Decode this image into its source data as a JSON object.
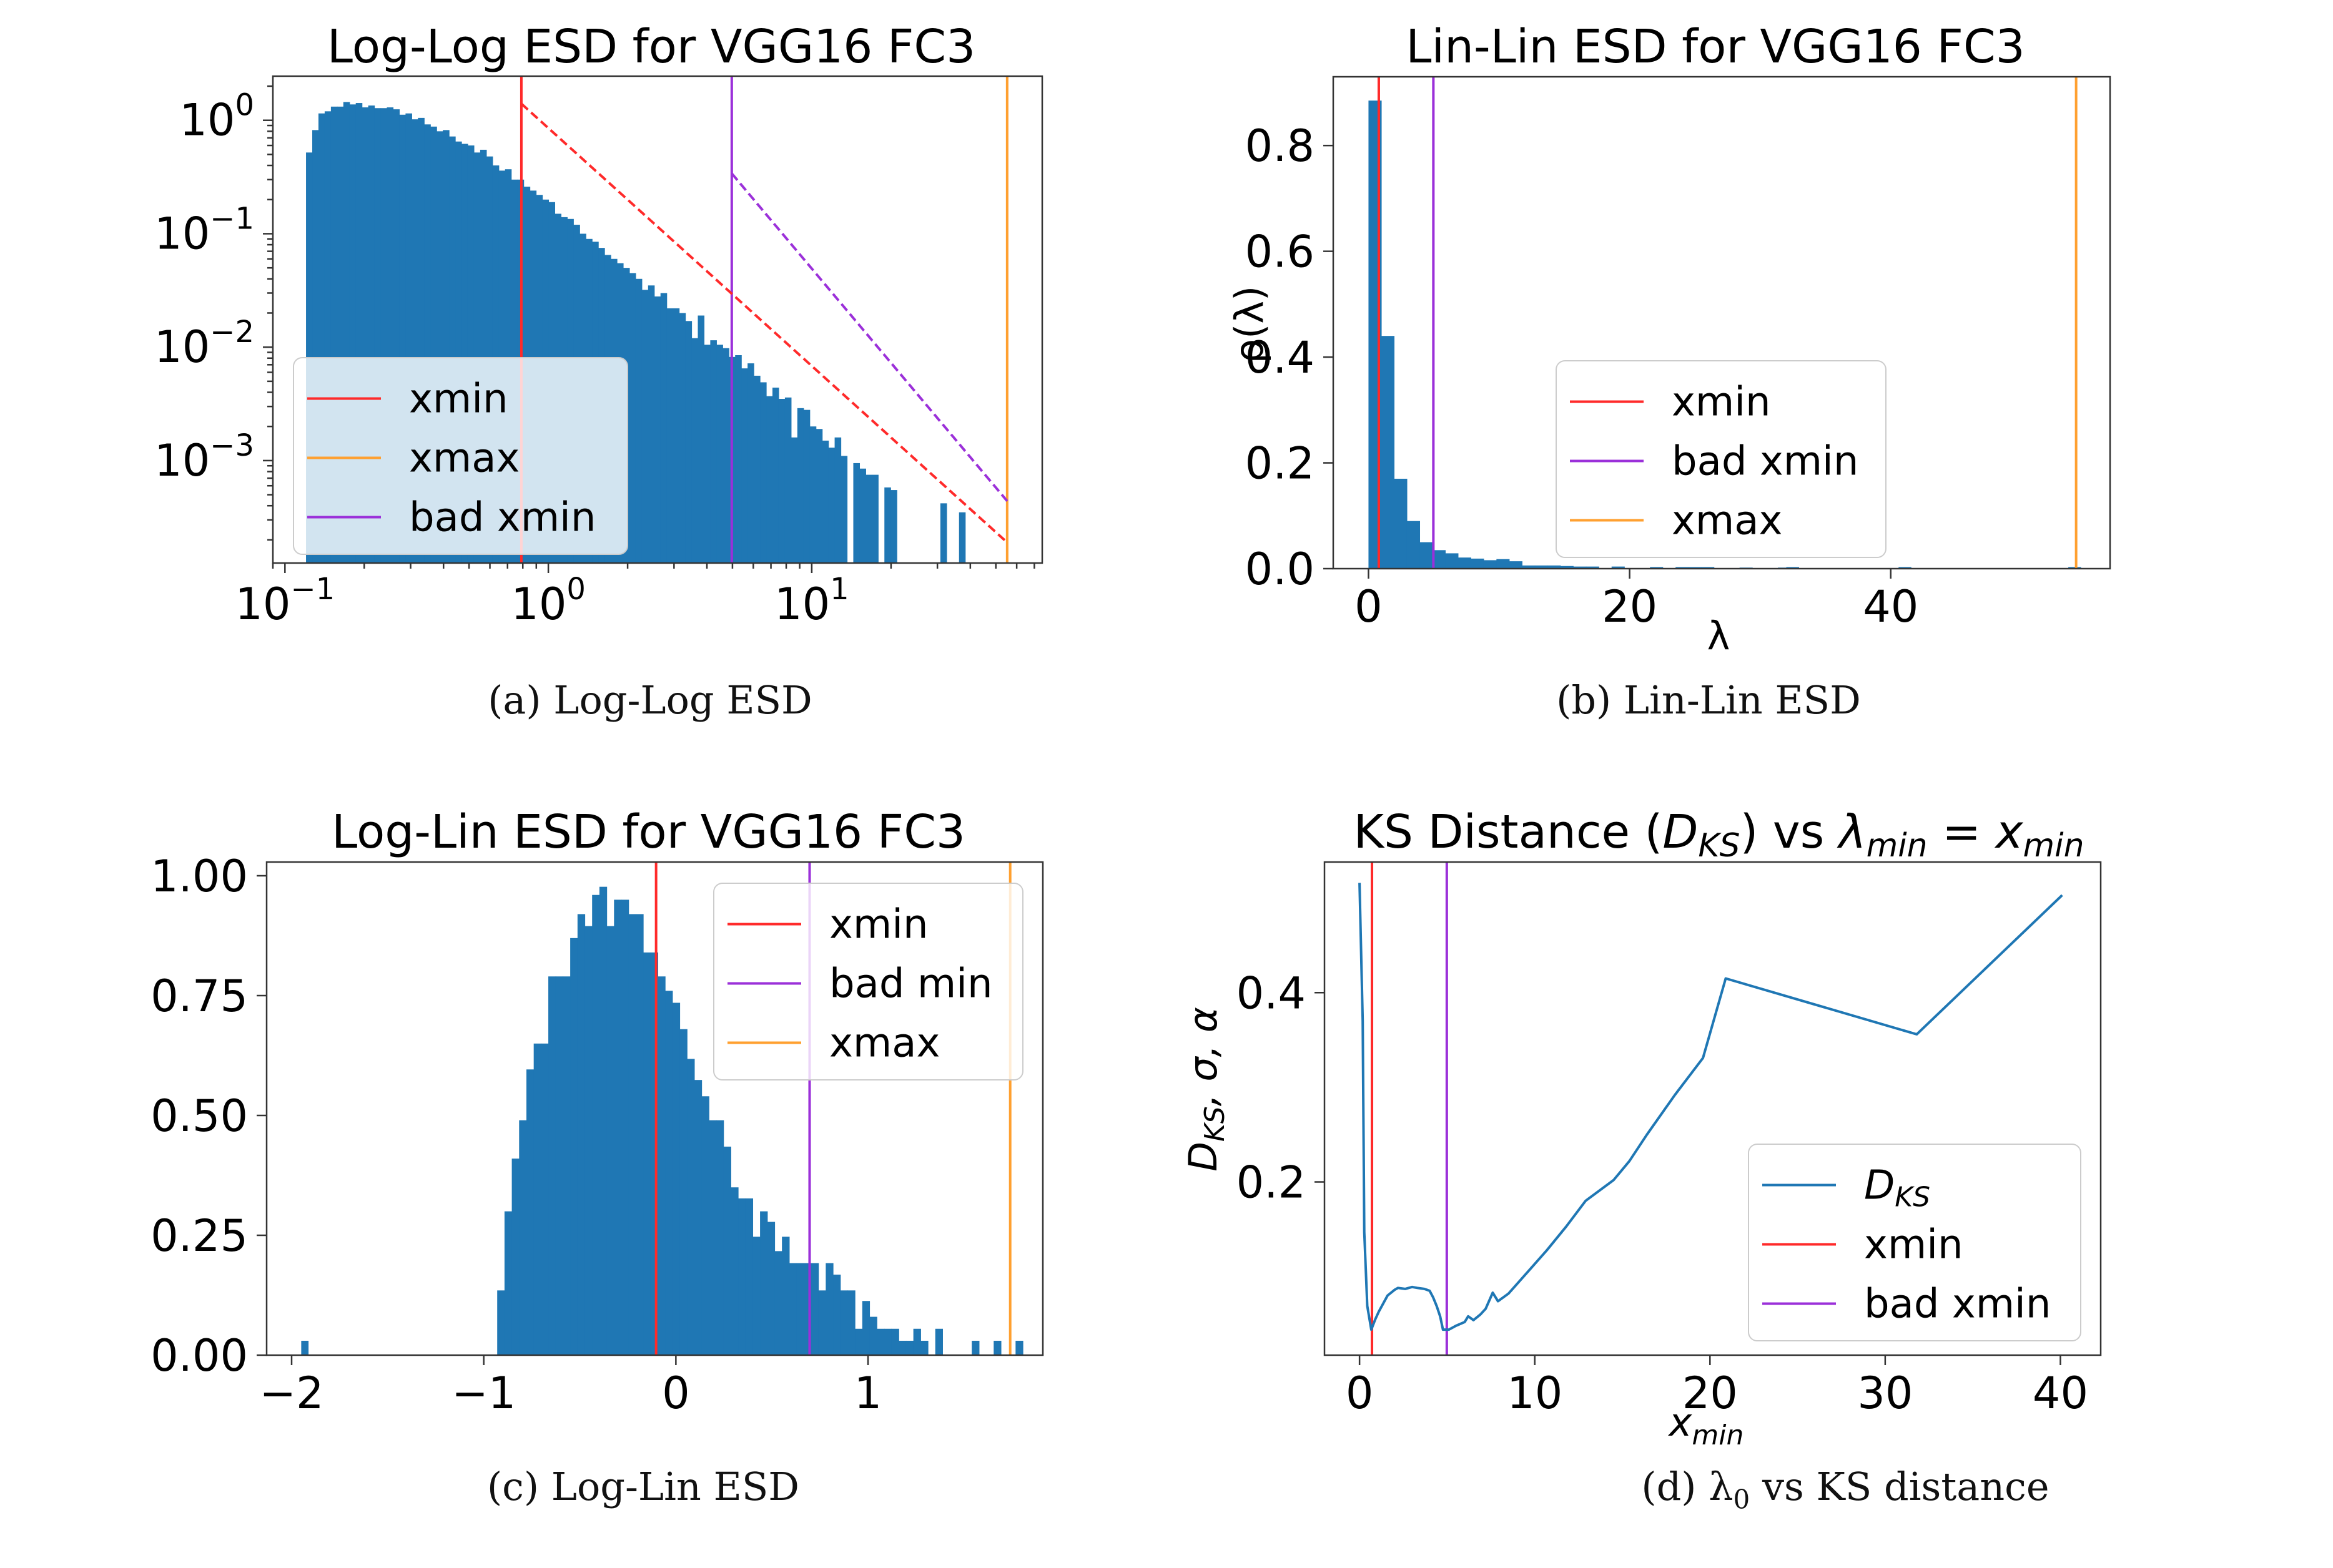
{
  "colors": {
    "bar": "#1f77b4",
    "xmin": "#ff2a2a",
    "bad_xmin": "#9b30d9",
    "xmax": "#ffa030",
    "line": "#1f77b4"
  },
  "captions": {
    "a": "(a) Log-Log ESD",
    "b": "(b) Lin-Lin ESD",
    "c": "(c) Log-Lin ESD",
    "d_prefix": "(d) λ",
    "d_sub": "0",
    "d_suffix": " vs KS distance"
  },
  "chart_data": [
    {
      "id": "a",
      "type": "bar",
      "title": "Log-Log ESD for VGG16 FC3",
      "xscale": "log",
      "yscale": "log",
      "xlim": [
        0.09,
        75
      ],
      "ylim": [
        0.000125,
        2.45
      ],
      "xticks": [
        {
          "value": 0.1,
          "base": "10",
          "exp": "−1"
        },
        {
          "value": 1,
          "base": "10",
          "exp": "0"
        },
        {
          "value": 10,
          "base": "10",
          "exp": "1"
        }
      ],
      "yticks": [
        {
          "value": 1,
          "base": "10",
          "exp": "0"
        },
        {
          "value": 0.1,
          "base": "10",
          "exp": "−1"
        },
        {
          "value": 0.01,
          "base": "10",
          "exp": "−2"
        },
        {
          "value": 0.001,
          "base": "10",
          "exp": "−3"
        }
      ],
      "bin_edges_log10": [
        -0.92,
        1.63
      ],
      "values": [
        0.52,
        0.82,
        1.15,
        1.2,
        1.32,
        1.32,
        1.45,
        1.38,
        1.42,
        1.3,
        1.35,
        1.28,
        1.28,
        1.3,
        1.25,
        1.12,
        1.15,
        1.02,
        1.05,
        0.92,
        0.88,
        0.8,
        0.82,
        0.72,
        0.65,
        0.62,
        0.6,
        0.52,
        0.55,
        0.48,
        0.4,
        0.36,
        0.37,
        0.3,
        0.3,
        0.26,
        0.24,
        0.22,
        0.2,
        0.19,
        0.15,
        0.14,
        0.135,
        0.12,
        0.1,
        0.09,
        0.085,
        0.075,
        0.065,
        0.06,
        0.055,
        0.05,
        0.045,
        0.04,
        0.032,
        0.035,
        0.028,
        0.03,
        0.022,
        0.022,
        0.02,
        0.017,
        0.012,
        0.019,
        0.0105,
        0.0115,
        0.0105,
        0.0098,
        0.0082,
        0.0085,
        0.0065,
        0.0072,
        0.0056,
        0.0049,
        0.0037,
        0.0044,
        0.0035,
        0.0036,
        0.0016,
        0.0029,
        0.0028,
        0.002,
        0.0019,
        0.0015,
        0.0013,
        0.0016,
        0.0011,
        0,
        0.00095,
        0.00085,
        0.00075,
        0.00075,
        0,
        0.00058,
        0.00055,
        0,
        0,
        0,
        0,
        0,
        0,
        0,
        0.00042,
        0,
        0,
        0.00035,
        0,
        0
      ],
      "vlines": [
        {
          "name": "xmin",
          "x": 0.79,
          "color_key": "xmin"
        },
        {
          "name": "bad xmin",
          "x": 4.97,
          "color_key": "bad_xmin"
        },
        {
          "name": "xmax",
          "x": 55.2,
          "color_key": "xmax"
        }
      ],
      "fit_lines": [
        {
          "name": "xmin fit",
          "x0": 0.79,
          "y0": 1.4,
          "x1": 55.2,
          "y1": 0.00019,
          "color_key": "xmin"
        },
        {
          "name": "bad xmin fit",
          "x0": 4.97,
          "y0": 0.34,
          "x1": 55.2,
          "y1": 0.00044,
          "color_key": "bad_xmin"
        }
      ],
      "legend": {
        "position": "lower-left",
        "framealpha": 0.8,
        "entries": [
          {
            "label": "xmin",
            "color_key": "xmin"
          },
          {
            "label": "xmax",
            "color_key": "xmax"
          },
          {
            "label": "bad xmin",
            "color_key": "bad_xmin"
          }
        ]
      }
    },
    {
      "id": "b",
      "type": "bar",
      "title": "Lin-Lin ESD for VGG16 FC3",
      "xlabel": "λ",
      "ylabel": "ρ(λ)",
      "xlim": [
        -2.7,
        56.8
      ],
      "ylim": [
        0,
        0.93
      ],
      "xticks": [
        0,
        20,
        40
      ],
      "yticks": [
        0.0,
        0.2,
        0.4,
        0.6,
        0.8
      ],
      "ytick_labels": [
        "0.0",
        "0.2",
        "0.4",
        "0.6",
        "0.8"
      ],
      "bin_start": 0.0,
      "bin_width": 0.98,
      "values": [
        0.885,
        0.44,
        0.17,
        0.09,
        0.05,
        0.035,
        0.029,
        0.021,
        0.019,
        0.016,
        0.018,
        0.014,
        0.006,
        0.006,
        0.006,
        0.005,
        0.004,
        0.004,
        0.0,
        0.004,
        0.0,
        0.0,
        0.003,
        0.0,
        0.003,
        0.003,
        0.003,
        0.0,
        0.0,
        0.002,
        0.0,
        0.0,
        0.002,
        0.0,
        0.0,
        0.0,
        0.0,
        0.0,
        0.0,
        0.0,
        0.0,
        0.0,
        0.0,
        0.0,
        0.0,
        0.0,
        0.0,
        0.0,
        0.0,
        0.0,
        0.0,
        0.0,
        0.0,
        0.0,
        0.0,
        0.0
      ],
      "extra_bars": [
        {
          "x": 32.0,
          "value": 0.003
        },
        {
          "x": 40.6,
          "value": 0.003
        },
        {
          "x": 53.6,
          "value": 0.003
        }
      ],
      "vlines": [
        {
          "name": "xmin",
          "x": 0.79,
          "color_key": "xmin"
        },
        {
          "name": "bad xmin",
          "x": 4.97,
          "color_key": "bad_xmin"
        },
        {
          "name": "xmax",
          "x": 54.2,
          "color_key": "xmax"
        }
      ],
      "legend": {
        "position": "center",
        "entries": [
          {
            "label": "xmin",
            "color_key": "xmin"
          },
          {
            "label": "bad xmin",
            "color_key": "bad_xmin"
          },
          {
            "label": "xmax",
            "color_key": "xmax"
          }
        ]
      }
    },
    {
      "id": "c",
      "type": "bar",
      "title": "Log-Lin ESD for VGG16 FC3",
      "xlim": [
        -2.13,
        1.91
      ],
      "ylim": [
        0,
        1.0
      ],
      "xticks": [
        -2,
        -1,
        0,
        1
      ],
      "xtick_labels": [
        "−2",
        "−1",
        "0",
        "1"
      ],
      "yticks": [
        0,
        0.25,
        0.5,
        0.75,
        1.0
      ],
      "ytick_labels": [
        "0.00",
        "0.25",
        "0.50",
        "0.75",
        "1.00"
      ],
      "bin_start": -0.93,
      "bin_width": 0.038,
      "values": [
        0.135,
        0.3,
        0.41,
        0.49,
        0.596,
        0.65,
        0.65,
        0.79,
        0.79,
        0.79,
        0.87,
        0.92,
        0.895,
        0.96,
        0.977,
        0.895,
        0.95,
        0.95,
        0.92,
        0.92,
        0.84,
        0.84,
        0.79,
        0.76,
        0.735,
        0.68,
        0.618,
        0.574,
        0.54,
        0.49,
        0.49,
        0.435,
        0.35,
        0.327,
        0.327,
        0.247,
        0.3,
        0.278,
        0.217,
        0.247,
        0.192,
        0.192,
        0.192,
        0.192,
        0.135,
        0.192,
        0.168,
        0.135,
        0.135,
        0.055,
        0.113,
        0.08,
        0.055,
        0.055,
        0.055,
        0.03,
        0.03,
        0.055,
        0.03,
        0.0,
        0.055,
        0.0,
        0.0,
        0.0,
        0.0,
        0.03,
        0.0,
        0.0,
        0.03,
        0.0,
        0.0,
        0.03
      ],
      "extra_bars": [
        {
          "x": -1.95,
          "value": 0.03
        }
      ],
      "vlines": [
        {
          "name": "xmin",
          "x": -0.103,
          "color_key": "xmin"
        },
        {
          "name": "bad min",
          "x": 0.696,
          "color_key": "bad_xmin"
        },
        {
          "name": "xmax",
          "x": 1.74,
          "color_key": "xmax"
        }
      ],
      "legend": {
        "position": "upper-right",
        "entries": [
          {
            "label": "xmin",
            "color_key": "xmin"
          },
          {
            "label": "bad min",
            "color_key": "bad_xmin"
          },
          {
            "label": "xmax",
            "color_key": "xmax"
          }
        ]
      }
    },
    {
      "id": "d",
      "type": "line",
      "title_parts": {
        "pre": "KS Distance (",
        "D": "D",
        "KS": "KS",
        "mid": ") vs ",
        "lambda": "λ",
        "min1": "min",
        "eq": " = ",
        "x": "x",
        "min2": "min"
      },
      "ylabel_parts": {
        "D": "D",
        "KS": "KS",
        "rest": ", σ, α"
      },
      "xlabel": "x_min",
      "xlim": [
        -2.0,
        42.3
      ],
      "ylim": [
        0.017,
        0.538
      ],
      "xticks": [
        0,
        10,
        20,
        30,
        40
      ],
      "yticks": [
        0.2,
        0.4
      ],
      "ytick_labels": [
        "0.2",
        "0.4"
      ],
      "series": [
        {
          "name": "D_KS",
          "color_key": "line",
          "x": [
            0,
            0.18,
            0.27,
            0.44,
            0.67,
            0.9,
            1.1,
            1.6,
            2.0,
            2.2,
            2.6,
            3.0,
            3.3,
            3.7,
            4.0,
            4.2,
            4.4,
            4.6,
            4.76,
            5.1,
            5.5,
            6.0,
            6.2,
            6.5,
            6.9,
            7.2,
            7.6,
            7.9,
            8.5,
            9.6,
            10.7,
            11.8,
            12.9,
            14.5,
            15.4,
            16.4,
            18.0,
            19.6,
            20.9,
            31.8,
            40.1
          ],
          "y": [
            0.516,
            0.37,
            0.147,
            0.069,
            0.044,
            0.055,
            0.063,
            0.08,
            0.086,
            0.088,
            0.087,
            0.089,
            0.088,
            0.087,
            0.085,
            0.078,
            0.069,
            0.058,
            0.044,
            0.044,
            0.048,
            0.052,
            0.058,
            0.054,
            0.06,
            0.066,
            0.083,
            0.074,
            0.082,
            0.105,
            0.128,
            0.153,
            0.18,
            0.202,
            0.222,
            0.25,
            0.292,
            0.331,
            0.415,
            0.356,
            0.503
          ]
        }
      ],
      "vlines": [
        {
          "name": "xmin",
          "x": 0.71,
          "color_key": "xmin"
        },
        {
          "name": "bad xmin",
          "x": 4.98,
          "color_key": "bad_xmin"
        }
      ],
      "legend": {
        "position": "lower-right",
        "entries": [
          {
            "label_D": "D",
            "label_sub": "KS",
            "color_key": "line"
          },
          {
            "label": "xmin",
            "color_key": "xmin"
          },
          {
            "label": "bad xmin",
            "color_key": "bad_xmin"
          }
        ]
      }
    }
  ]
}
